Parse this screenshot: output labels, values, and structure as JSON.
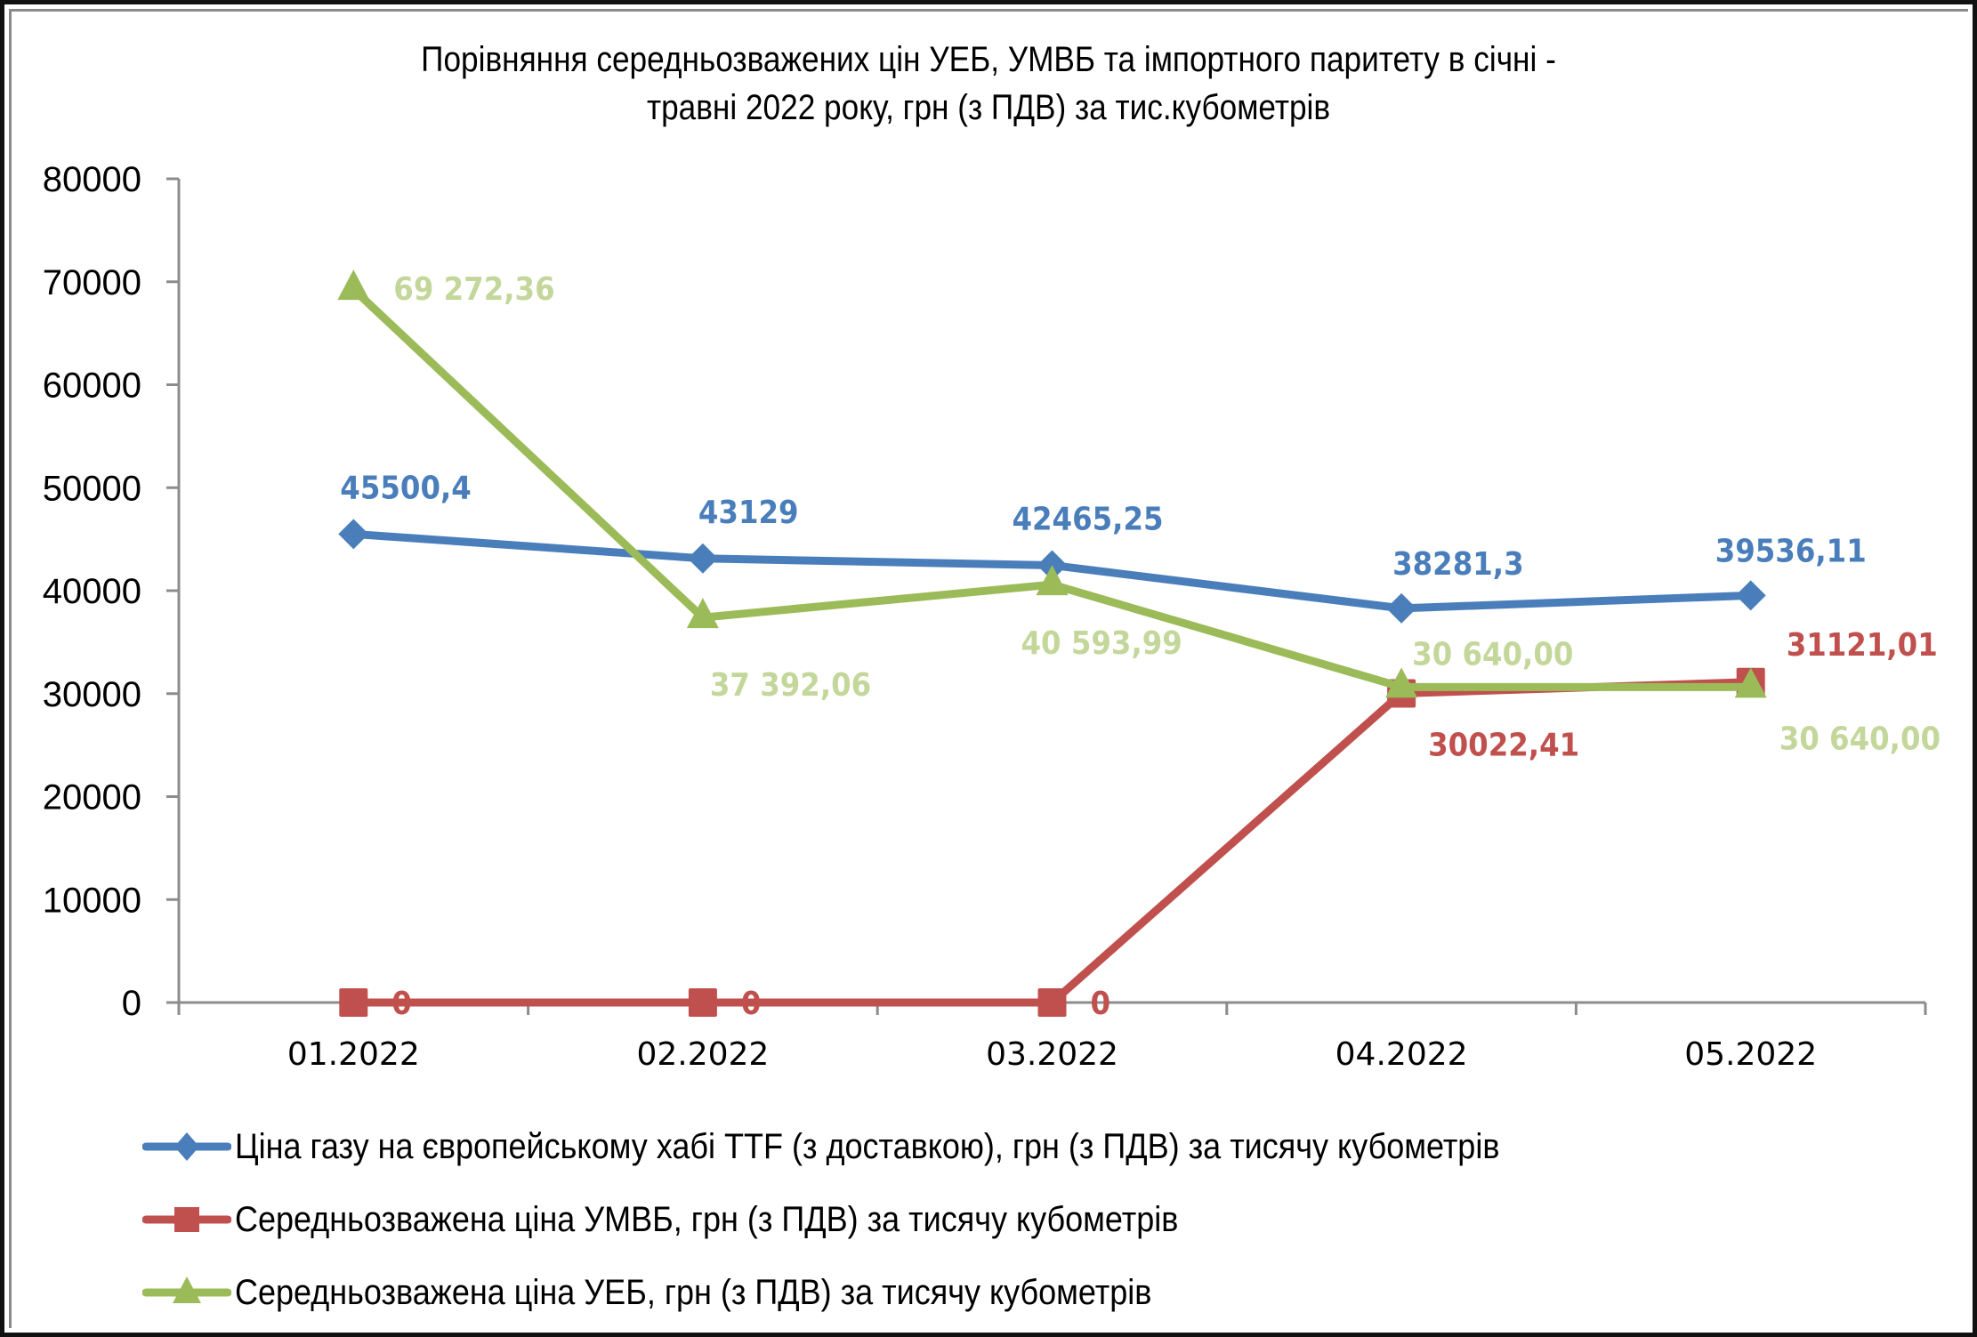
{
  "title": {
    "line1": "Порівняння середньозважених цін УЕБ, УМВБ та імпортного паритету в січні -",
    "line2": "травні 2022 року, грн (з ПДВ) за тис.кубометрів"
  },
  "colors": {
    "ttf": "#4A7EBB",
    "umvb": "#C0504D",
    "ueb": "#9BBB59",
    "ueb_label": "#C4D79B",
    "axis": "#8C8C8C"
  },
  "y_axis": {
    "ticks": [
      "80000",
      "70000",
      "60000",
      "50000",
      "40000",
      "30000",
      "20000",
      "10000",
      "0"
    ]
  },
  "x_axis": {
    "ticks": [
      "01.2022",
      "02.2022",
      "03.2022",
      "04.2022",
      "05.2022"
    ]
  },
  "legend": {
    "items": [
      {
        "label": "Ціна газу на європейському хабі TTF (з доставкою), грн (з ПДВ) за тисячу кубометрів",
        "marker": "diamond-icon"
      },
      {
        "label": "Середньозважена ціна УМВБ, грн (з ПДВ) за тисячу кубометрів",
        "marker": "square-icon"
      },
      {
        "label": "Середньозважена ціна УЕБ, грн (з ПДВ) за тисячу кубометрів",
        "marker": "triangle-icon"
      }
    ]
  },
  "data_labels": {
    "ttf": [
      "45500,4",
      "43129",
      "42465,25",
      "38281,3",
      "39536,11"
    ],
    "umvb": [
      "0",
      "0",
      "0",
      "30022,41",
      "31121,01"
    ],
    "ueb": [
      "69 272,36",
      "37 392,06",
      "40 593,99",
      "30 640,00",
      "30 640,00"
    ]
  },
  "chart_data": {
    "type": "line",
    "title": "Порівняння середньозважених цін УЕБ, УМВБ та імпортного паритету в січні - травні 2022 року, грн (з ПДВ) за тис.кубометрів",
    "xlabel": "",
    "ylabel": "",
    "ylim": [
      0,
      80000
    ],
    "yticks": [
      0,
      10000,
      20000,
      30000,
      40000,
      50000,
      60000,
      70000,
      80000
    ],
    "grid": false,
    "legend_position": "bottom",
    "categories": [
      "01.2022",
      "02.2022",
      "03.2022",
      "04.2022",
      "05.2022"
    ],
    "series": [
      {
        "name": "Ціна газу на європейському хабі TTF (з доставкою), грн (з ПДВ) за тисячу кубометрів",
        "marker": "diamond",
        "color": "#4A7EBB",
        "values": [
          45500.4,
          43129,
          42465.25,
          38281.3,
          39536.11
        ]
      },
      {
        "name": "Середньозважена ціна УМВБ, грн (з ПДВ) за тисячу кубометрів",
        "marker": "square",
        "color": "#C0504D",
        "values": [
          0,
          0,
          0,
          30022.41,
          31121.01
        ]
      },
      {
        "name": "Середньозважена ціна УЕБ, грн (з ПДВ) за тисячу кубометрів",
        "marker": "triangle",
        "color": "#9BBB59",
        "values": [
          69272.36,
          37392.06,
          40593.99,
          30640.0,
          30640.0
        ]
      }
    ]
  }
}
